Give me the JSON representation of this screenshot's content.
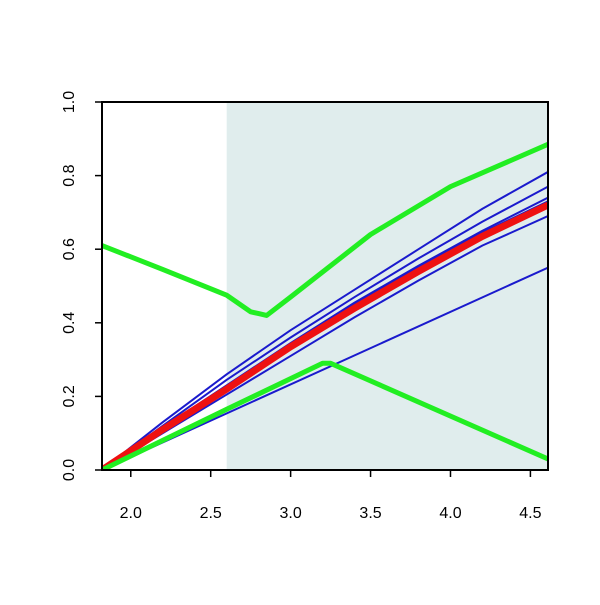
{
  "chart_data": {
    "type": "line",
    "xlim": [
      1.82,
      4.61
    ],
    "ylim": [
      0,
      1
    ],
    "xticks": [
      {
        "value": 2,
        "label": "2.0"
      },
      2.5,
      {
        "value": 3,
        "label": "3.0"
      },
      3.5,
      {
        "value": 4,
        "label": "4.0"
      },
      4.5
    ],
    "yticks": [
      {
        "value": 0,
        "label": "0.0"
      },
      0.2,
      0.4,
      0.6,
      0.8,
      {
        "value": 1,
        "label": "1.0"
      }
    ],
    "shade_from": 2.6,
    "shade_color": "#e0eded",
    "series": [
      {
        "color": "#1a1acd",
        "width": 2,
        "x": [
          1.82,
          2.2,
          2.6,
          3.0,
          3.4,
          3.8,
          4.2,
          4.61
        ],
        "values": [
          0,
          0.13,
          0.26,
          0.38,
          0.49,
          0.6,
          0.71,
          0.81
        ]
      },
      {
        "color": "#1a1acd",
        "width": 2,
        "x": [
          1.82,
          2.2,
          2.6,
          3.0,
          3.4,
          3.8,
          4.2,
          4.61
        ],
        "values": [
          0,
          0.12,
          0.245,
          0.36,
          0.47,
          0.575,
          0.675,
          0.77
        ]
      },
      {
        "color": "#1a1acd",
        "width": 2,
        "x": [
          1.82,
          2.2,
          2.6,
          3.0,
          3.4,
          3.8,
          4.2,
          4.61
        ],
        "values": [
          0,
          0.115,
          0.23,
          0.345,
          0.455,
          0.555,
          0.65,
          0.74
        ]
      },
      {
        "color": "#1a1acd",
        "width": 2,
        "x": [
          1.82,
          2.2,
          2.6,
          3.0,
          3.4,
          3.8,
          4.2,
          4.61
        ],
        "values": [
          0,
          0.11,
          0.225,
          0.34,
          0.45,
          0.55,
          0.645,
          0.73
        ]
      },
      {
        "color": "#1a1acd",
        "width": 2,
        "x": [
          1.82,
          2.2,
          2.6,
          3.0,
          3.4,
          3.8,
          4.2,
          4.61
        ],
        "values": [
          0,
          0.1,
          0.205,
          0.31,
          0.415,
          0.515,
          0.61,
          0.69
        ]
      },
      {
        "color": "#1a1acd",
        "width": 2,
        "x": [
          1.82,
          4.61
        ],
        "values": [
          0,
          0.55
        ]
      },
      {
        "color": "#ee1111",
        "width": 7,
        "x": [
          1.82,
          2.2,
          2.6,
          3.0,
          3.4,
          3.8,
          4.2,
          4.61
        ],
        "values": [
          0,
          0.11,
          0.22,
          0.335,
          0.44,
          0.54,
          0.635,
          0.72
        ]
      },
      {
        "color": "#22ee22",
        "width": 5,
        "x": [
          1.82,
          2.2,
          2.6,
          2.75,
          2.8,
          2.85,
          3.0,
          3.5,
          4.0,
          4.61
        ],
        "values": [
          0.61,
          0.545,
          0.475,
          0.43,
          0.425,
          0.42,
          0.47,
          0.64,
          0.77,
          0.885
        ]
      },
      {
        "color": "#22ee22",
        "width": 5,
        "x": [
          1.82,
          2.6,
          3.2,
          3.25,
          4.61
        ],
        "values": [
          0,
          0.165,
          0.29,
          0.29,
          0.03
        ]
      }
    ]
  }
}
